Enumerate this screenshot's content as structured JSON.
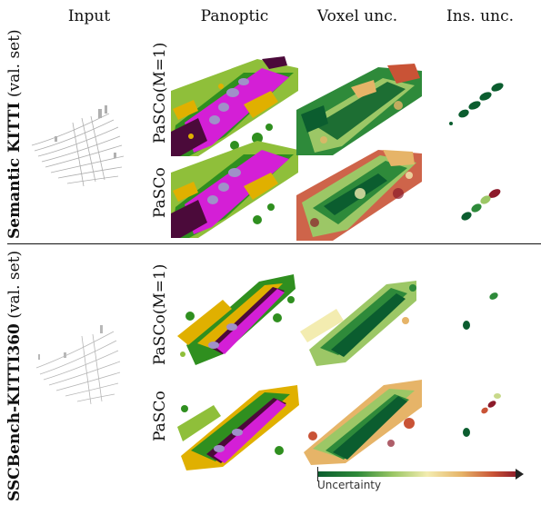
{
  "columns": {
    "input": "Input",
    "panoptic": "Panoptic",
    "voxel": "Voxel unc.",
    "instance": "Ins. unc."
  },
  "datasets": [
    {
      "name": "Semantic KITTI",
      "subset": "(val. set)",
      "methods": [
        "PaSCo(M=1)",
        "PaSCo"
      ]
    },
    {
      "name": "SSCBench-KITTI360",
      "subset": "(val. set)",
      "methods": [
        "PaSCo(M=1)",
        "PaSCo"
      ]
    }
  ],
  "colorbar": {
    "label": "Uncertainty",
    "colors": [
      "#0b5d2f",
      "#2e8a3a",
      "#9cc766",
      "#f3ecb0",
      "#e6b468",
      "#c95336",
      "#8c1a2a"
    ]
  },
  "palette": {
    "road": "#d41fd6",
    "vegetation": "#2f8f1f",
    "terrain": "#8fbf3a",
    "building": "#e0b000",
    "sidewalk": "#4b0a3a",
    "car": "#a090c8"
  }
}
